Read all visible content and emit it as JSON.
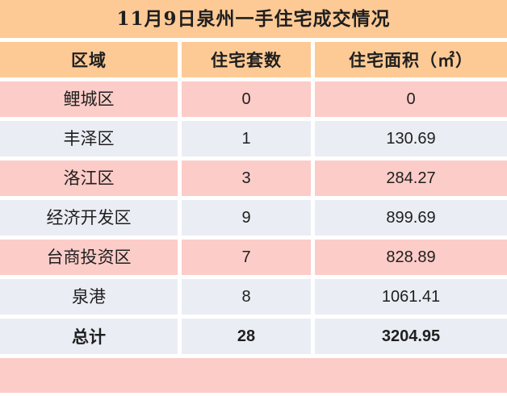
{
  "title": "11月9日泉州一手住宅成交情况",
  "table": {
    "headers": [
      "区域",
      "住宅套数",
      "住宅面积（㎡）"
    ],
    "rows": [
      {
        "region": "鲤城区",
        "units": "0",
        "area": "0"
      },
      {
        "region": "丰泽区",
        "units": "1",
        "area": "130.69"
      },
      {
        "region": "洛江区",
        "units": "3",
        "area": "284.27"
      },
      {
        "region": "经济开发区",
        "units": "9",
        "area": "899.69"
      },
      {
        "region": "台商投资区",
        "units": "7",
        "area": "828.89"
      },
      {
        "region": "泉港",
        "units": "8",
        "area": "1061.41"
      },
      {
        "region": "总计",
        "units": "28",
        "area": "3204.95",
        "is_total": true
      }
    ]
  },
  "chart_data": {
    "type": "table",
    "title": "11月9日泉州一手住宅成交情况",
    "columns": [
      "区域",
      "住宅套数",
      "住宅面积（㎡）"
    ],
    "rows": [
      [
        "鲤城区",
        0,
        0
      ],
      [
        "丰泽区",
        1,
        130.69
      ],
      [
        "洛江区",
        3,
        284.27
      ],
      [
        "经济开发区",
        9,
        899.69
      ],
      [
        "台商投资区",
        7,
        828.89
      ],
      [
        "泉港",
        8,
        1061.41
      ],
      [
        "总计",
        28,
        3204.95
      ]
    ]
  },
  "colors": {
    "header_bg": "#FDCA96",
    "row_pink": "#FCCCC8",
    "row_blue": "#EAEDF4",
    "divider": "#FFFFFF",
    "text": "#1F1F1F"
  }
}
